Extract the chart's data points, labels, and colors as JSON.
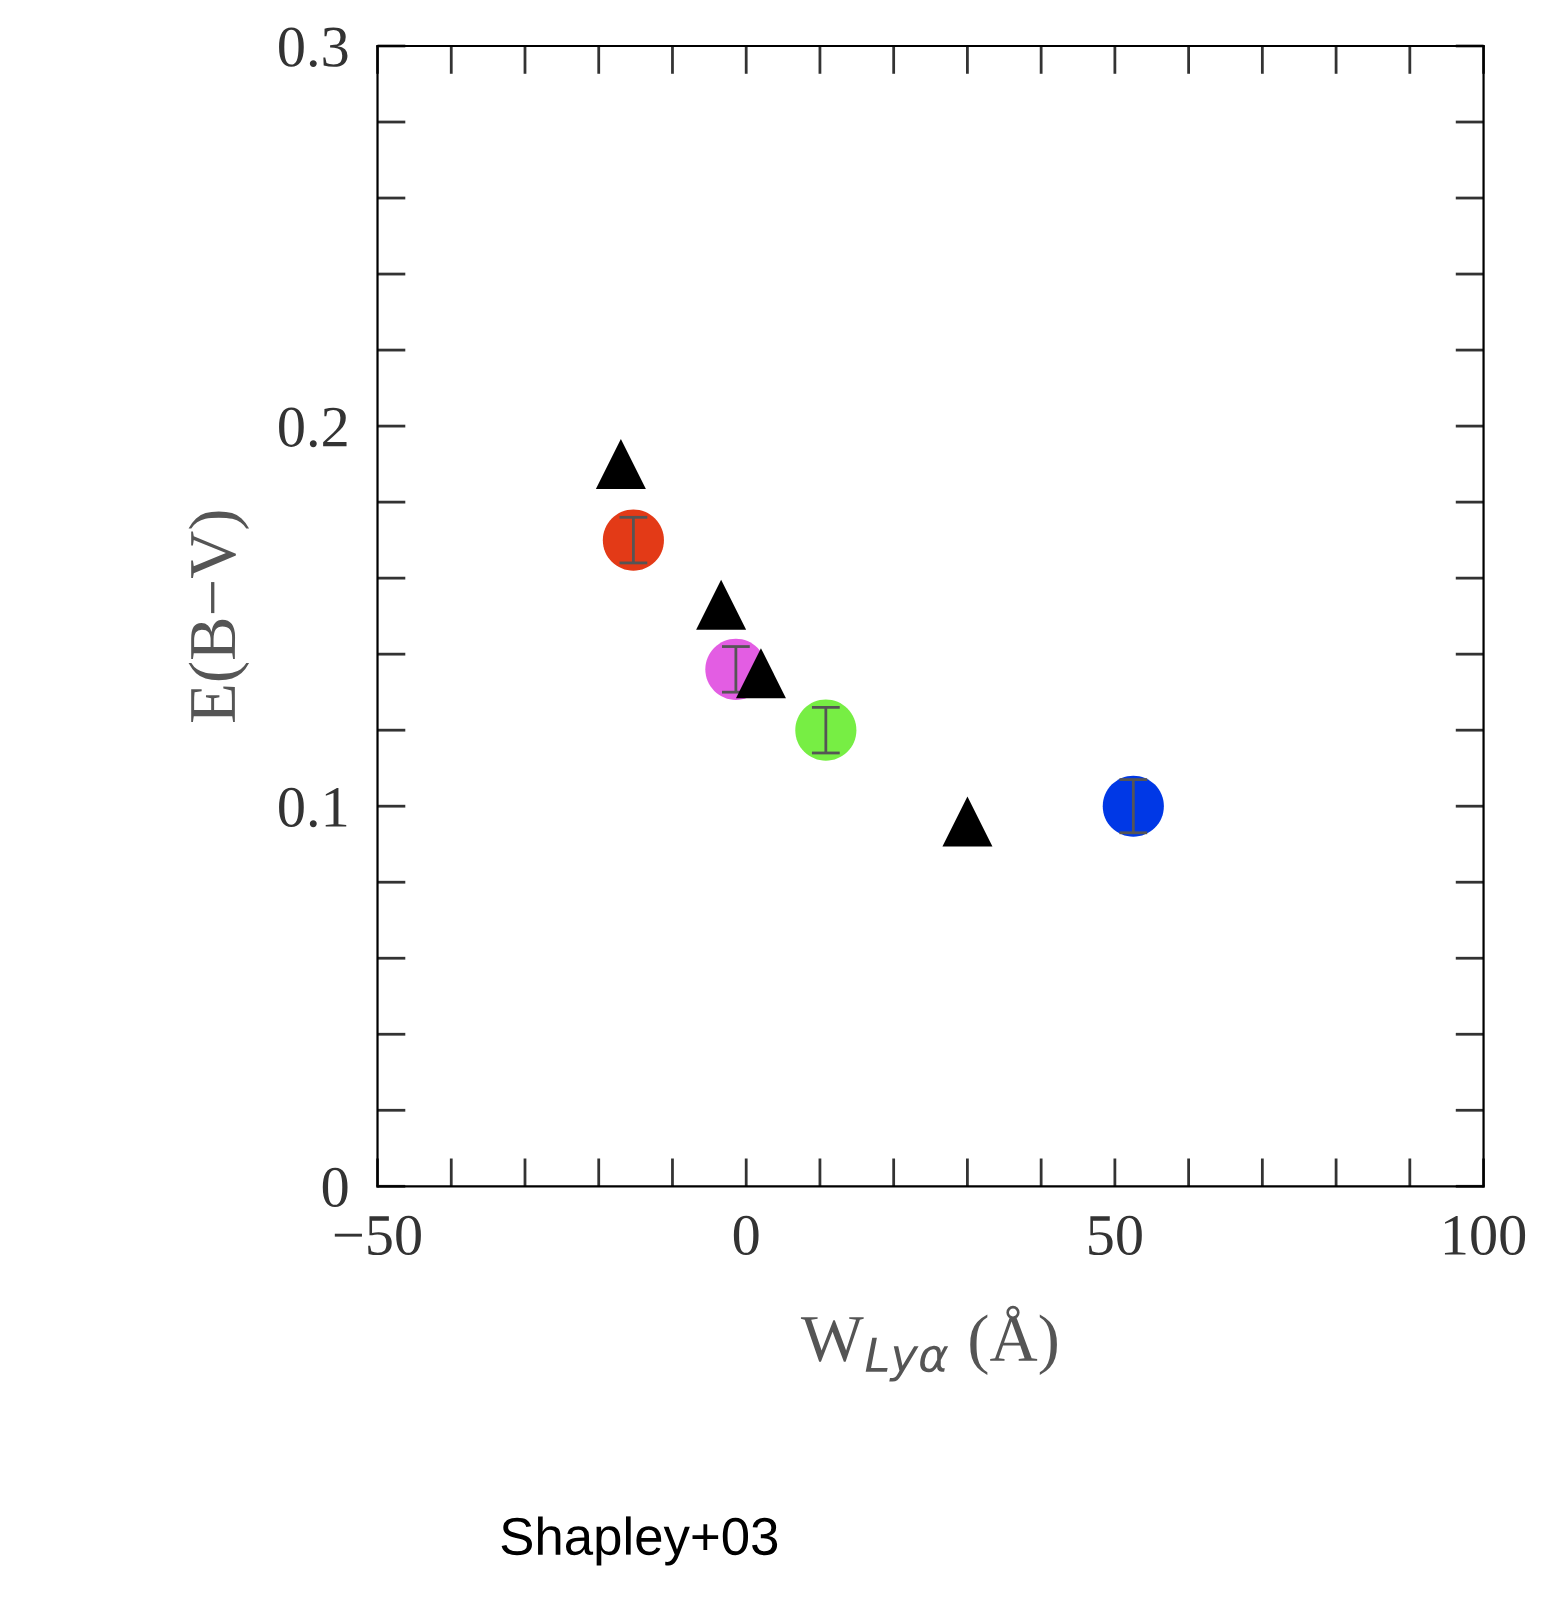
{
  "chart_data": {
    "type": "scatter",
    "xlabel": "W$_{Lyα}$ (Å)",
    "ylabel": "E(B−V)",
    "annotations": [
      "Shapley+03"
    ],
    "xlim": [
      -50,
      100
    ],
    "ylim": [
      0,
      0.3
    ],
    "xticks": [
      {
        "value": -50,
        "label": "−50"
      },
      {
        "value": -40,
        "label": null
      },
      {
        "value": -30,
        "label": null
      },
      {
        "value": -20,
        "label": null
      },
      {
        "value": -10,
        "label": null
      },
      0,
      {
        "value": 10,
        "label": null
      },
      {
        "value": 20,
        "label": null
      },
      {
        "value": 30,
        "label": null
      },
      {
        "value": 40,
        "label": null
      },
      50,
      {
        "value": 60,
        "label": null
      },
      {
        "value": 70,
        "label": null
      },
      {
        "value": 80,
        "label": null
      },
      {
        "value": 90,
        "label": null
      },
      100
    ],
    "yticks": [
      0,
      {
        "value": 0.02,
        "label": null
      },
      {
        "value": 0.04,
        "label": null
      },
      {
        "value": 0.06,
        "label": null
      },
      {
        "value": 0.08,
        "label": null
      },
      0.1,
      {
        "value": 0.12,
        "label": null
      },
      {
        "value": 0.14,
        "label": null
      },
      {
        "value": 0.16,
        "label": null
      },
      {
        "value": 0.18,
        "label": null
      },
      0.2,
      {
        "value": 0.22,
        "label": null
      },
      {
        "value": 0.24,
        "label": null
      },
      {
        "value": 0.26,
        "label": null
      },
      {
        "value": 0.28,
        "label": null
      },
      0.3
    ],
    "grid": false,
    "legend": false,
    "series": [
      {
        "marker": "triangle",
        "color": "#000000",
        "x": [
          -17,
          -3.4,
          2,
          30
        ],
        "values": [
          0.19,
          0.153,
          0.135,
          0.096
        ]
      },
      {
        "marker": "circle",
        "colors": [
          "#e33a17",
          "#e35de3",
          "#77ee44",
          "#0038e6"
        ],
        "x": [
          -15.3,
          -1.4,
          10.8,
          52.5
        ],
        "values": [
          0.17,
          0.136,
          0.12,
          0.1
        ],
        "errors": [
          0.006,
          0.006,
          0.006,
          0.007
        ]
      }
    ]
  }
}
